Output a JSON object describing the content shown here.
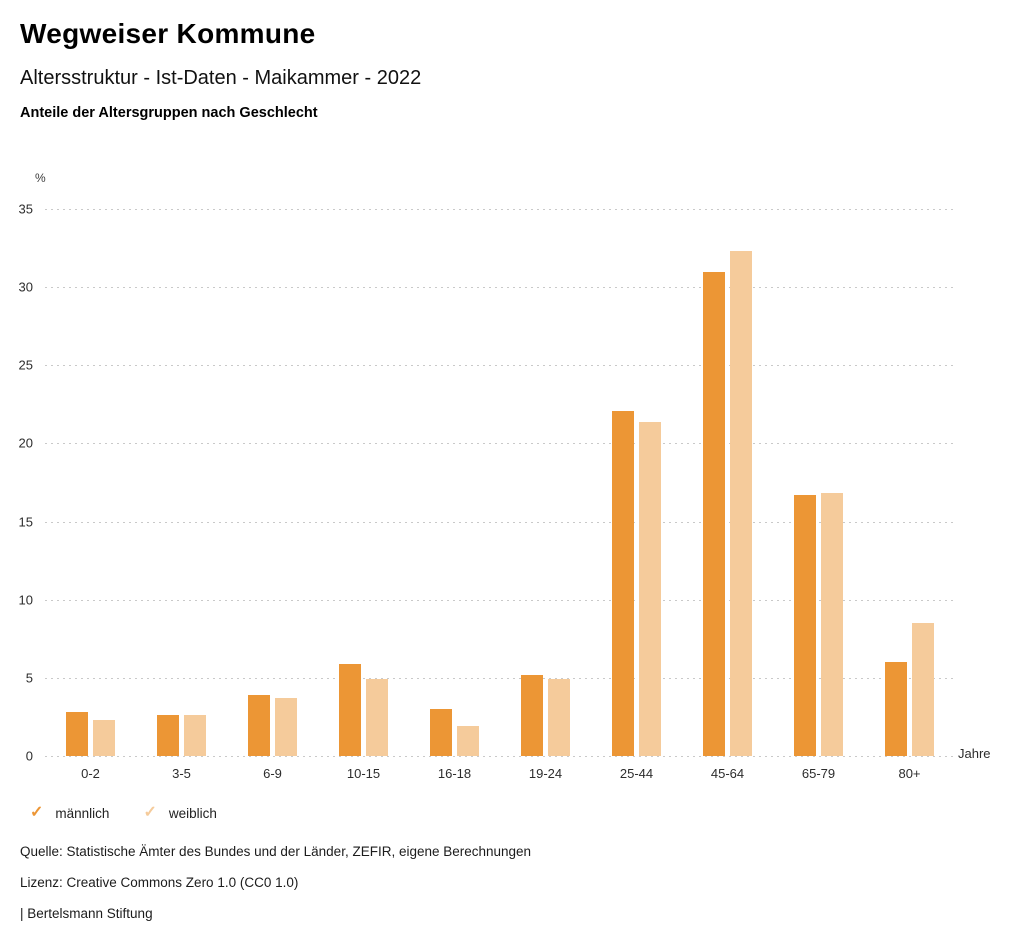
{
  "header": {
    "title": "Wegweiser Kommune",
    "subtitle": "Altersstruktur - Ist-Daten - Maikammer - 2022",
    "chart_subtitle": "Anteile der Altersgruppen nach Geschlecht"
  },
  "chart_data": {
    "type": "bar",
    "title": "Anteile der Altersgruppen nach Geschlecht",
    "categories": [
      "0-2",
      "3-5",
      "6-9",
      "10-15",
      "16-18",
      "19-24",
      "25-44",
      "45-64",
      "65-79",
      "80+"
    ],
    "series": [
      {
        "name": "männlich",
        "color": "#EC9635",
        "values": [
          2.8,
          2.6,
          3.9,
          5.9,
          3.0,
          5.2,
          22.1,
          31.0,
          16.7,
          6.0
        ]
      },
      {
        "name": "weiblich",
        "color": "#F5CB9B",
        "values": [
          2.3,
          2.6,
          3.7,
          4.9,
          1.9,
          4.9,
          21.4,
          32.3,
          16.8,
          8.5
        ]
      }
    ],
    "xlabel": "Jahre",
    "ylabel": "%",
    "ylim": [
      0,
      35
    ],
    "yticks": [
      0,
      5,
      10,
      15,
      20,
      25,
      30,
      35
    ],
    "grid": "horizontal-dotted",
    "legend_position": "bottom-left",
    "legend_marker": "✓"
  },
  "footer": {
    "source": "Quelle: Statistische Ämter des Bundes und der Länder, ZEFIR, eigene Berechnungen",
    "license": "Lizenz: Creative Commons Zero 1.0 (CC0 1.0)",
    "branding": "| Bertelsmann Stiftung"
  }
}
